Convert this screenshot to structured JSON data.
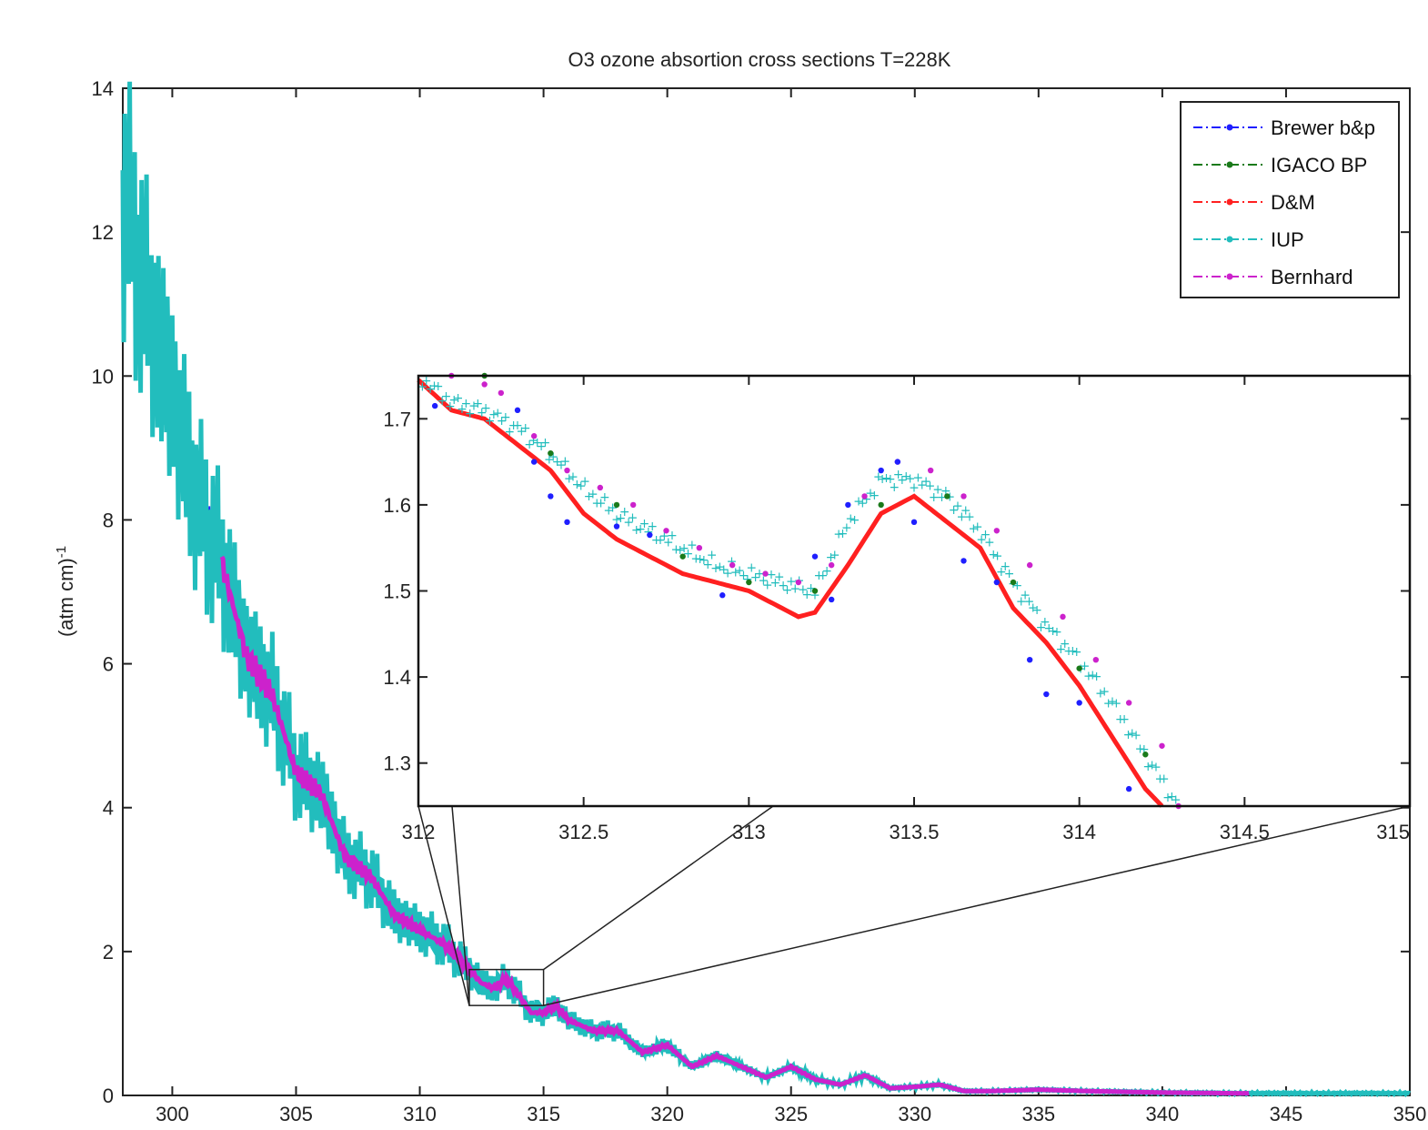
{
  "chart_data": [
    {
      "id": "main",
      "type": "line",
      "title": "O3 ozone absortion cross sections T=228K",
      "xlabel": "",
      "ylabel": "(atm cm)",
      "ylabel_sup": "-1",
      "xlim": [
        298,
        350
      ],
      "ylim": [
        0,
        14
      ],
      "xticks": [
        300,
        305,
        310,
        315,
        320,
        325,
        330,
        335,
        340,
        345,
        350
      ],
      "yticks": [
        0,
        2,
        4,
        6,
        8,
        10,
        12,
        14
      ],
      "legend_position": "top-right",
      "series": [
        {
          "name": "Brewer b&p",
          "color": "#1f1fff"
        },
        {
          "name": "IGACO BP",
          "color": "#1a7a1a"
        },
        {
          "name": "D&M",
          "color": "#ff2020"
        },
        {
          "name": "IUP",
          "color": "#22bdbd"
        },
        {
          "name": "Bernhard",
          "color": "#cc22cc"
        }
      ],
      "curve": [
        [
          298.0,
          12.5
        ],
        [
          299.0,
          11.0
        ],
        [
          300.0,
          9.7
        ],
        [
          301.0,
          8.2
        ],
        [
          302.0,
          7.4
        ],
        [
          303.0,
          6.1
        ],
        [
          304.0,
          5.6
        ],
        [
          305.0,
          4.5
        ],
        [
          306.0,
          4.2
        ],
        [
          307.0,
          3.3
        ],
        [
          308.0,
          3.05
        ],
        [
          309.0,
          2.5
        ],
        [
          310.0,
          2.3
        ],
        [
          311.0,
          2.1
        ],
        [
          312.0,
          1.75
        ],
        [
          312.5,
          1.56
        ],
        [
          313.0,
          1.49
        ],
        [
          313.5,
          1.62
        ],
        [
          314.0,
          1.39
        ],
        [
          314.5,
          1.15
        ],
        [
          315.0,
          1.15
        ],
        [
          315.5,
          1.25
        ],
        [
          316.0,
          1.05
        ],
        [
          317.0,
          0.9
        ],
        [
          318.0,
          0.9
        ],
        [
          319.0,
          0.6
        ],
        [
          320.0,
          0.7
        ],
        [
          321.0,
          0.4
        ],
        [
          322.0,
          0.55
        ],
        [
          323.0,
          0.4
        ],
        [
          324.0,
          0.25
        ],
        [
          325.0,
          0.4
        ],
        [
          326.0,
          0.22
        ],
        [
          327.0,
          0.15
        ],
        [
          328.0,
          0.28
        ],
        [
          329.0,
          0.1
        ],
        [
          330.0,
          0.12
        ],
        [
          331.0,
          0.15
        ],
        [
          332.0,
          0.06
        ],
        [
          333.0,
          0.06
        ],
        [
          335.0,
          0.08
        ],
        [
          337.0,
          0.06
        ],
        [
          340.0,
          0.04
        ],
        [
          343.0,
          0.03
        ],
        [
          345.0,
          0.03
        ],
        [
          350.0,
          0.03
        ]
      ],
      "bernhard_start": 302.0,
      "bernhard_end": 343.5,
      "zoom_box": {
        "x": [
          312,
          315
        ],
        "y": [
          1.25,
          1.75
        ]
      }
    },
    {
      "id": "inset",
      "type": "line",
      "title": "",
      "xlim": [
        312,
        315
      ],
      "ylim": [
        1.25,
        1.75
      ],
      "xticks": [
        312,
        312.5,
        313,
        313.5,
        314,
        314.5,
        315
      ],
      "xtick_labels": [
        "312",
        "312.5",
        "313",
        "313.5",
        "314",
        "314.5",
        "315"
      ],
      "yticks": [
        1.3,
        1.4,
        1.5,
        1.6,
        1.7
      ],
      "yticks_labels": [
        "1.3",
        "1.4",
        "1.5",
        "1.6",
        "1.7"
      ],
      "dm_curve": [
        [
          312.0,
          1.745
        ],
        [
          312.1,
          1.71
        ],
        [
          312.2,
          1.7
        ],
        [
          312.3,
          1.67
        ],
        [
          312.4,
          1.64
        ],
        [
          312.5,
          1.59
        ],
        [
          312.6,
          1.56
        ],
        [
          312.7,
          1.54
        ],
        [
          312.8,
          1.52
        ],
        [
          312.9,
          1.51
        ],
        [
          313.0,
          1.5
        ],
        [
          313.1,
          1.48
        ],
        [
          313.15,
          1.47
        ],
        [
          313.2,
          1.475
        ],
        [
          313.3,
          1.53
        ],
        [
          313.4,
          1.59
        ],
        [
          313.5,
          1.61
        ],
        [
          313.6,
          1.58
        ],
        [
          313.7,
          1.55
        ],
        [
          313.8,
          1.48
        ],
        [
          313.9,
          1.44
        ],
        [
          314.0,
          1.39
        ],
        [
          314.1,
          1.33
        ],
        [
          314.2,
          1.27
        ],
        [
          314.25,
          1.25
        ]
      ],
      "iup_curve": [
        [
          312.0,
          1.75
        ],
        [
          312.1,
          1.72
        ],
        [
          312.2,
          1.71
        ],
        [
          312.3,
          1.69
        ],
        [
          312.4,
          1.66
        ],
        [
          312.5,
          1.62
        ],
        [
          312.6,
          1.59
        ],
        [
          312.7,
          1.57
        ],
        [
          312.8,
          1.55
        ],
        [
          312.9,
          1.53
        ],
        [
          313.0,
          1.52
        ],
        [
          313.1,
          1.51
        ],
        [
          313.2,
          1.5
        ],
        [
          313.3,
          1.58
        ],
        [
          313.4,
          1.63
        ],
        [
          313.5,
          1.63
        ],
        [
          313.6,
          1.61
        ],
        [
          313.7,
          1.57
        ],
        [
          313.8,
          1.51
        ],
        [
          313.9,
          1.46
        ],
        [
          314.0,
          1.42
        ],
        [
          314.1,
          1.37
        ],
        [
          314.2,
          1.31
        ],
        [
          314.3,
          1.25
        ]
      ],
      "brewer_points": [
        [
          312.05,
          1.715
        ],
        [
          312.3,
          1.71
        ],
        [
          312.35,
          1.65
        ],
        [
          312.4,
          1.61
        ],
        [
          312.45,
          1.58
        ],
        [
          312.6,
          1.575
        ],
        [
          312.7,
          1.565
        ],
        [
          312.92,
          1.495
        ],
        [
          313.2,
          1.54
        ],
        [
          313.25,
          1.49
        ],
        [
          313.3,
          1.6
        ],
        [
          313.4,
          1.64
        ],
        [
          313.45,
          1.65
        ],
        [
          313.5,
          1.58
        ],
        [
          313.65,
          1.535
        ],
        [
          313.75,
          1.51
        ],
        [
          313.85,
          1.42
        ],
        [
          313.9,
          1.38
        ],
        [
          314.0,
          1.37
        ],
        [
          314.15,
          1.27
        ]
      ],
      "bernhard_points": [
        [
          312.1,
          1.75
        ],
        [
          312.2,
          1.74
        ],
        [
          312.25,
          1.73
        ],
        [
          312.35,
          1.68
        ],
        [
          312.45,
          1.64
        ],
        [
          312.55,
          1.62
        ],
        [
          312.65,
          1.6
        ],
        [
          312.75,
          1.57
        ],
        [
          312.85,
          1.55
        ],
        [
          312.95,
          1.53
        ],
        [
          313.05,
          1.52
        ],
        [
          313.15,
          1.51
        ],
        [
          313.25,
          1.53
        ],
        [
          313.35,
          1.61
        ],
        [
          313.45,
          1.65
        ],
        [
          313.55,
          1.64
        ],
        [
          313.65,
          1.61
        ],
        [
          313.75,
          1.57
        ],
        [
          313.85,
          1.53
        ],
        [
          313.95,
          1.47
        ],
        [
          314.05,
          1.42
        ],
        [
          314.15,
          1.37
        ],
        [
          314.25,
          1.32
        ],
        [
          314.3,
          1.25
        ]
      ],
      "igaco_points": [
        [
          312.2,
          1.75
        ],
        [
          312.4,
          1.66
        ],
        [
          312.6,
          1.6
        ],
        [
          312.8,
          1.54
        ],
        [
          313.0,
          1.51
        ],
        [
          313.2,
          1.5
        ],
        [
          313.4,
          1.6
        ],
        [
          313.6,
          1.61
        ],
        [
          313.8,
          1.51
        ],
        [
          314.0,
          1.41
        ],
        [
          314.2,
          1.31
        ]
      ]
    }
  ]
}
